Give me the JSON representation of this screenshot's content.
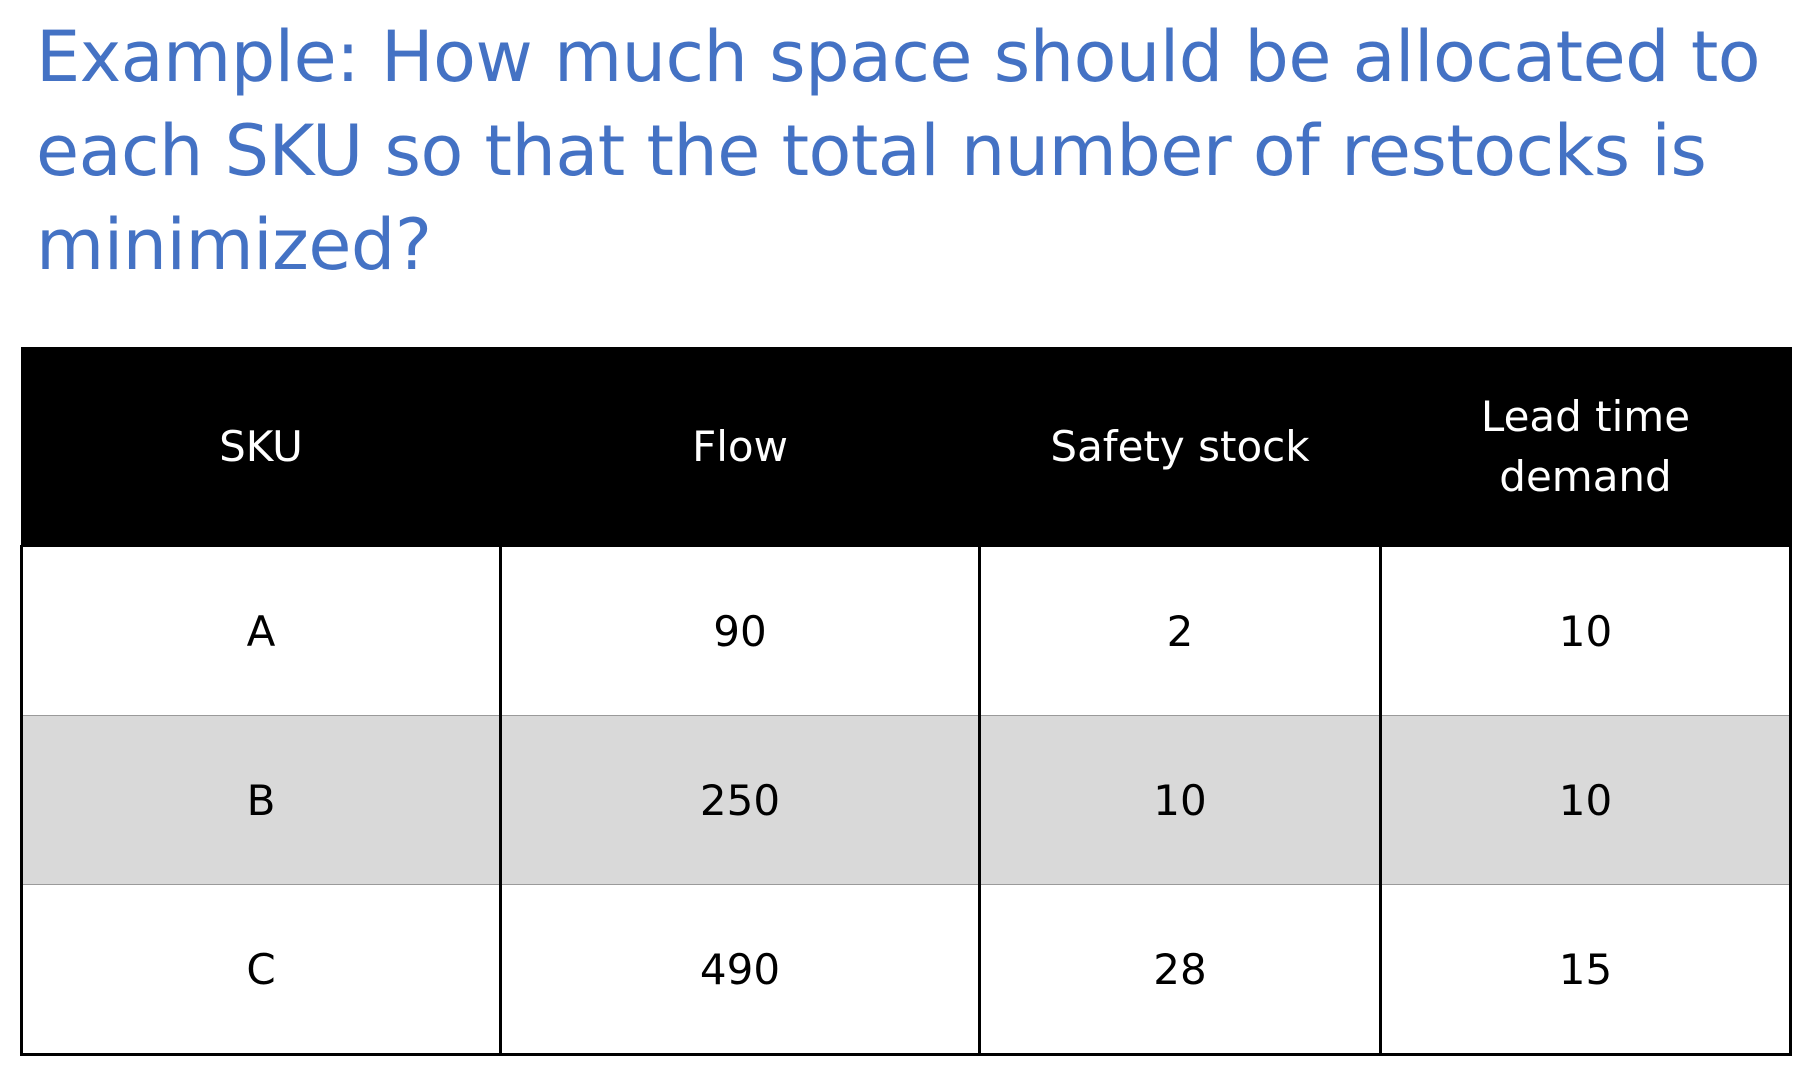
{
  "slide": {
    "title": "Example: How much space should be allocated to each SKU so that the total number of restocks is minimized?"
  },
  "table": {
    "headers": {
      "sku": "SKU",
      "flow": "Flow",
      "safety_stock": "Safety stock",
      "lead_time_demand_line1": "Lead time",
      "lead_time_demand_line2": "demand"
    },
    "rows": [
      {
        "sku": "A",
        "flow": "90",
        "safety_stock": "2",
        "lead_time_demand": "10"
      },
      {
        "sku": "B",
        "flow": "250",
        "safety_stock": "10",
        "lead_time_demand": "10"
      },
      {
        "sku": "C",
        "flow": "490",
        "safety_stock": "28",
        "lead_time_demand": "15"
      }
    ],
    "colors": {
      "header_bg": "#000000",
      "header_text": "#FFFFFF",
      "shaded_row_bg": "#D9D9D9",
      "title_color": "#4472C4"
    }
  }
}
